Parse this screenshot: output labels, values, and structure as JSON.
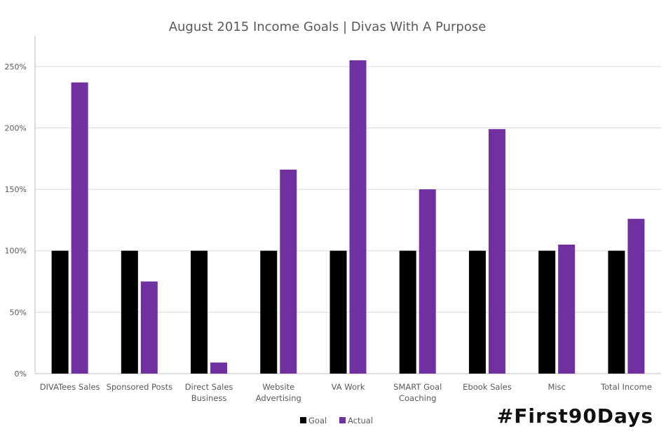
{
  "chart_data": {
    "type": "bar",
    "title": "August 2015 Income Goals | Divas With A Purpose",
    "categories": [
      [
        "DIVATees Sales"
      ],
      [
        "Sponsored Posts"
      ],
      [
        "Direct Sales",
        "Business"
      ],
      [
        "Website",
        "Advertising"
      ],
      [
        "VA Work"
      ],
      [
        "SMART Goal",
        "Coaching"
      ],
      [
        "Ebook Sales"
      ],
      [
        "Misc"
      ],
      [
        "Total Income"
      ]
    ],
    "series": [
      {
        "name": "Goal",
        "color": "#000000",
        "values": [
          100,
          100,
          100,
          100,
          100,
          100,
          100,
          100,
          100
        ]
      },
      {
        "name": "Actual",
        "color": "#7030A0",
        "values": [
          237,
          75,
          9,
          166,
          255,
          150,
          199,
          105,
          126
        ]
      }
    ],
    "yticks": [
      "0%",
      "50%",
      "100%",
      "150%",
      "200%",
      "250%"
    ],
    "ylim": [
      0,
      275
    ],
    "grid": true,
    "legend": "bottom"
  },
  "hashtag": "#First90Days"
}
